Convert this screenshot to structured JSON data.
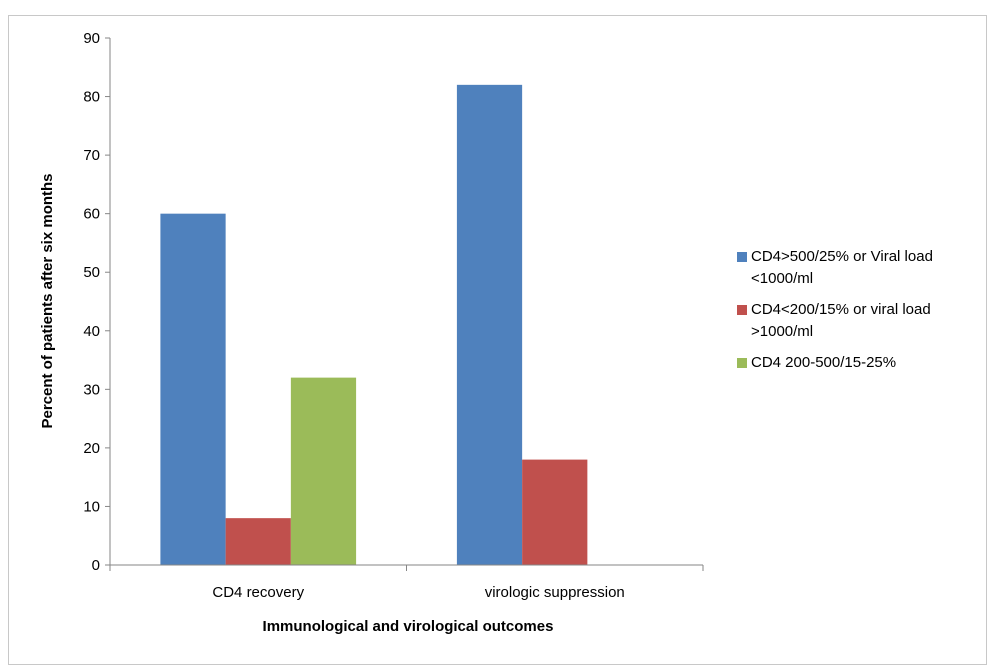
{
  "chart_data": {
    "type": "bar",
    "categories": [
      "CD4 recovery",
      "virologic suppression"
    ],
    "series": [
      {
        "name": "CD4>500/25% or Viral load <1000/ml",
        "values": [
          60,
          82
        ],
        "color": "#4F81BD"
      },
      {
        "name": "CD4<200/15% or viral load >1000/ml",
        "values": [
          8,
          18
        ],
        "color": "#C0504D"
      },
      {
        "name": "CD4 200-500/15-25%",
        "values": [
          32,
          null
        ],
        "color": "#9BBB59"
      }
    ],
    "xlabel": "Immunological and virological outcomes",
    "ylabel": "Percent of patients after six months",
    "ylim": [
      0,
      90
    ],
    "yticks": [
      0,
      10,
      20,
      30,
      40,
      50,
      60,
      70,
      80,
      90
    ],
    "grid": false,
    "legend_position": "right"
  }
}
